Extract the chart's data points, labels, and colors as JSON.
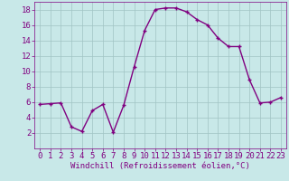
{
  "x": [
    0,
    1,
    2,
    3,
    4,
    5,
    6,
    7,
    8,
    9,
    10,
    11,
    12,
    13,
    14,
    15,
    16,
    17,
    18,
    19,
    20,
    21,
    22,
    23
  ],
  "y": [
    5.7,
    5.8,
    5.9,
    2.8,
    2.2,
    4.9,
    5.7,
    2.1,
    5.6,
    10.6,
    15.3,
    18.0,
    18.2,
    18.2,
    17.7,
    16.7,
    16.0,
    14.3,
    13.2,
    13.2,
    8.9,
    5.9,
    6.0,
    6.6
  ],
  "line_color": "#800080",
  "marker": "+",
  "marker_color": "#800080",
  "bg_color": "#c8e8e8",
  "grid_color": "#a0c4c4",
  "xlabel": "Windchill (Refroidissement éolien,°C)",
  "xlabel_color": "#800080",
  "tick_color": "#800080",
  "label_color": "#800080",
  "ylim": [
    0,
    19
  ],
  "xlim": [
    -0.5,
    23.5
  ],
  "yticks": [
    2,
    4,
    6,
    8,
    10,
    12,
    14,
    16,
    18
  ],
  "xticks": [
    0,
    1,
    2,
    3,
    4,
    5,
    6,
    7,
    8,
    9,
    10,
    11,
    12,
    13,
    14,
    15,
    16,
    17,
    18,
    19,
    20,
    21,
    22,
    23
  ],
  "marker_size": 3,
  "line_width": 1.0,
  "font_size": 6.5
}
